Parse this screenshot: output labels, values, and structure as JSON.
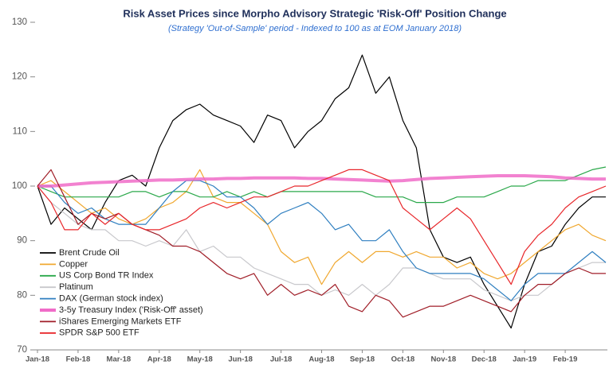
{
  "chart_data": {
    "type": "line",
    "title": "Risk Asset Prices since Morpho Advisory Strategic 'Risk-Off' Position Change",
    "subtitle": "(Strategy 'Out-of-Sample' period - Indexed to 100 as at EOM January 2018)",
    "categories": [
      "Jan-18",
      null,
      null,
      "Feb-18",
      null,
      null,
      "Mar-18",
      null,
      null,
      "Apr-18",
      null,
      null,
      "May-18",
      null,
      null,
      "Jun-18",
      null,
      null,
      "Jul-18",
      null,
      null,
      "Aug-18",
      null,
      null,
      "Sep-18",
      null,
      null,
      "Oct-18",
      null,
      null,
      "Nov-18",
      null,
      null,
      "Dec-18",
      null,
      null,
      "Jan-19",
      null,
      null,
      "Feb-19",
      null,
      null,
      null
    ],
    "ylim": [
      70,
      130
    ],
    "yticks": [
      70,
      80,
      90,
      100,
      110,
      120,
      130
    ],
    "grid": false,
    "series": [
      {
        "name": "Brent Crude Oil",
        "color": "#000000",
        "width": 1.2,
        "values": [
          100,
          93,
          96,
          94,
          92,
          97,
          101,
          102,
          100,
          107,
          112,
          114,
          115,
          113,
          112,
          111,
          108,
          113,
          112,
          107,
          110,
          112,
          116,
          118,
          124,
          117,
          120,
          112,
          107,
          92,
          87,
          86,
          87,
          82,
          78,
          74,
          82,
          88,
          89,
          93,
          96,
          98,
          98
        ]
      },
      {
        "name": "Copper",
        "color": "#f0a830",
        "width": 1.2,
        "values": [
          100,
          101,
          99,
          97,
          95,
          96,
          94,
          93,
          94,
          96,
          97,
          99,
          103,
          98,
          97,
          97,
          95,
          93,
          88,
          86,
          87,
          82,
          86,
          88,
          86,
          88,
          88,
          87,
          88,
          87,
          87,
          85,
          86,
          84,
          83,
          84,
          86,
          88,
          90,
          92,
          93,
          91,
          90
        ]
      },
      {
        "name": "US Corp Bond TR Index",
        "color": "#2aa84a",
        "width": 1.2,
        "values": [
          100,
          99,
          98,
          98,
          98,
          98,
          98,
          99,
          99,
          98,
          99,
          99,
          98,
          98,
          99,
          98,
          99,
          98,
          99,
          99,
          99,
          99,
          99,
          99,
          99,
          98,
          98,
          98,
          97,
          97,
          97,
          98,
          98,
          98,
          99,
          100,
          100,
          101,
          101,
          101,
          102,
          103,
          103.5
        ]
      },
      {
        "name": "Platinum",
        "color": "#c8c8cc",
        "width": 1.2,
        "values": [
          100,
          97,
          95,
          93,
          92,
          92,
          90,
          90,
          89,
          90,
          89,
          92,
          88,
          89,
          87,
          87,
          85,
          84,
          83,
          82,
          82,
          80,
          81,
          80,
          82,
          80,
          82,
          85,
          85,
          84,
          83,
          83,
          83,
          81,
          80,
          79,
          80,
          80,
          82,
          84,
          85,
          86,
          86
        ]
      },
      {
        "name": "DAX (German stock index)",
        "color": "#2f7fc0",
        "width": 1.2,
        "values": [
          100,
          100,
          97,
          95,
          96,
          94,
          93,
          93,
          93,
          96,
          99,
          101,
          101,
          100,
          98,
          98,
          96,
          93,
          95,
          96,
          97,
          95,
          92,
          93,
          90,
          90,
          92,
          88,
          85,
          84,
          84,
          84,
          84,
          83,
          81,
          79,
          82,
          84,
          84,
          84,
          86,
          88,
          86
        ]
      },
      {
        "name": "3-5y Treasury Index ('Risk-Off' asset)",
        "color": "#f06cc8",
        "width": 4,
        "values": [
          100,
          100,
          100.2,
          100.4,
          100.6,
          100.7,
          100.8,
          100.9,
          101,
          101.1,
          101.1,
          101.2,
          101.3,
          101.3,
          101.4,
          101.4,
          101.5,
          101.5,
          101.5,
          101.5,
          101.4,
          101.4,
          101.3,
          101.2,
          101.1,
          101,
          100.9,
          101,
          101.2,
          101.4,
          101.5,
          101.6,
          101.7,
          101.8,
          101.9,
          101.9,
          101.9,
          101.8,
          101.7,
          101.5,
          101.4,
          101.3,
          101.3
        ]
      },
      {
        "name": "iShares Emerging Markets ETF",
        "color": "#a01e28",
        "width": 1.2,
        "values": [
          100,
          103,
          98,
          93,
          95,
          94,
          95,
          93,
          92,
          91,
          89,
          89,
          88,
          86,
          84,
          83,
          84,
          80,
          82,
          80,
          81,
          80,
          82,
          78,
          77,
          80,
          79,
          76,
          77,
          78,
          78,
          79,
          80,
          79,
          78,
          77,
          80,
          82,
          82,
          84,
          85,
          84,
          84
        ]
      },
      {
        "name": "SPDR S&P 500 ETF",
        "color": "#e8262a",
        "width": 1.2,
        "values": [
          100,
          97,
          92,
          92,
          95,
          93,
          95,
          93,
          92,
          92,
          93,
          94,
          96,
          97,
          96,
          97,
          98,
          98,
          99,
          100,
          100,
          101,
          102,
          103,
          103,
          102,
          101,
          96,
          94,
          92,
          94,
          96,
          94,
          90,
          86,
          82,
          88,
          91,
          93,
          96,
          98,
          99,
          100
        ]
      }
    ]
  }
}
